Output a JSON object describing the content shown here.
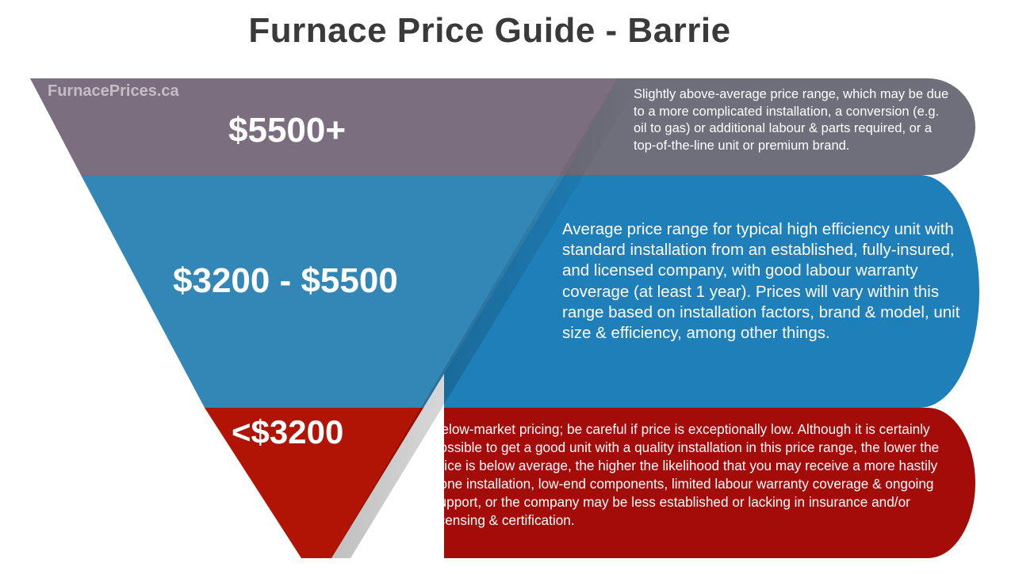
{
  "title": "Furnace Price Guide - Barrie",
  "watermark": "FurnacePrices.ca",
  "colors": {
    "tier_high_funnel": "#7b6e7e",
    "tier_high_band": "#6e6f7b",
    "tier_mid_funnel": "#3287b7",
    "tier_mid_band": "#1f7fb8",
    "tier_low_funnel": "#b11305",
    "tier_low_band": "#a40c0a"
  },
  "tiers": [
    {
      "price": "$5500+",
      "description": "Slightly above-average price range, which may be due to a more complicated installation, a conversion (e.g. oil to gas) or additional labour & parts required, or a top-of-the-line unit or premium brand."
    },
    {
      "price": "$3200 - $5500",
      "description": "Average price range for typical high efficiency unit with standard installation from an established, fully-insured, and licensed company, with good labour warranty coverage (at least 1 year). Prices will vary within this range based on installation factors, brand & model, unit size & efficiency, among other things."
    },
    {
      "price": "<$3200",
      "description": "Below-market pricing; be careful if price is exceptionally low. Although it is certainly possible to get a good unit with a quality installation in this price range, the lower the price is below average, the higher the likelihood that you may receive a more hastily done installation, low-end components, limited labour warranty coverage & ongoing support, or the company may be less established or lacking in insurance and/or licensing & certification."
    }
  ]
}
